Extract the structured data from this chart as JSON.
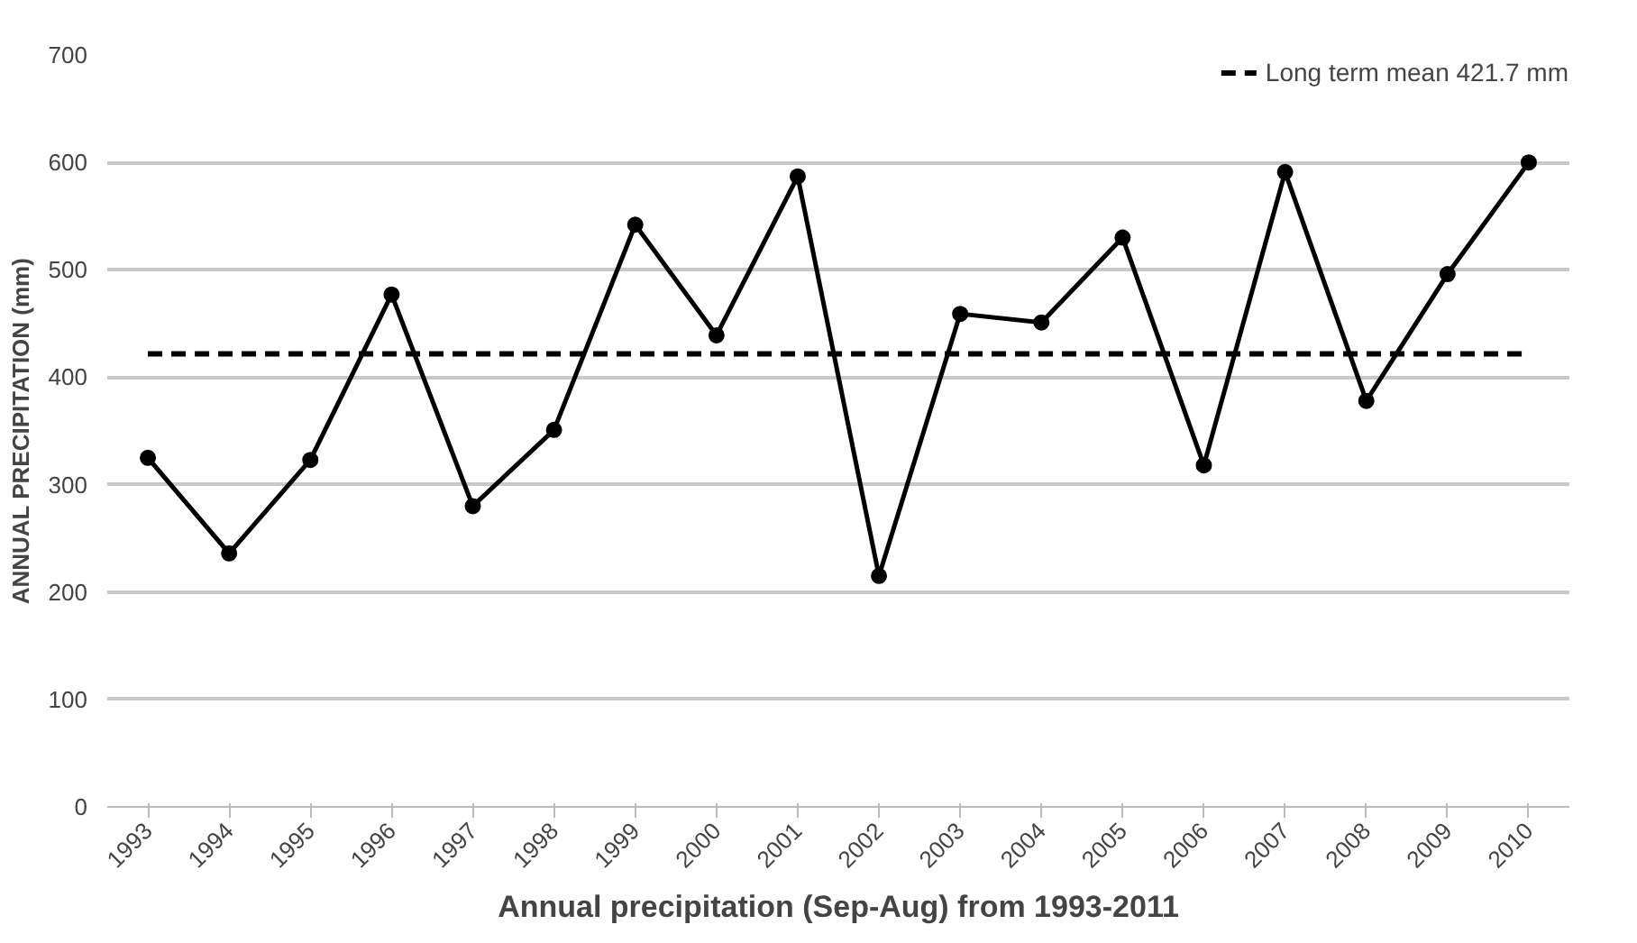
{
  "chart_data": {
    "type": "line",
    "xlabel": "Annual precipitation (Sep-Aug) from 1993-2011",
    "ylabel": "ANNUAL PRECIPITATION (mm)",
    "categories": [
      "1993",
      "1994",
      "1995",
      "1996",
      "1997",
      "1998",
      "1999",
      "2000",
      "2001",
      "2002",
      "2003",
      "2004",
      "2005",
      "2006",
      "2007",
      "2008",
      "2009",
      "2010"
    ],
    "series": [
      {
        "color": "#000000",
        "values": [
          325,
          236,
          323,
          477,
          280,
          351,
          542,
          439,
          587,
          215,
          459,
          451,
          530,
          318,
          591,
          378,
          496,
          600
        ]
      }
    ],
    "ylim": [
      0,
      700
    ],
    "yticks": [
      0,
      100,
      200,
      300,
      400,
      500,
      600,
      700
    ],
    "grid": "y",
    "marker": "circle",
    "line_style": "solid",
    "legend": "top right",
    "ref_lines": [
      {
        "axis": "y",
        "value": 421.7,
        "label": "Long term mean 421.7 mm",
        "color": "#000000",
        "line_style": "dashed"
      }
    ]
  }
}
